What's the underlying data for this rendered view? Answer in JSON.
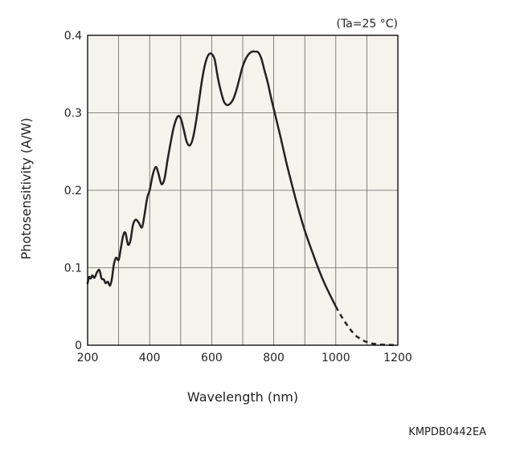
{
  "chart_data": {
    "type": "line",
    "title": "",
    "condition_note": "(Ta=25 °C)",
    "xlabel": "Wavelength (nm)",
    "ylabel": "Photosensitivity (A/W)",
    "xlim": [
      200,
      1200
    ],
    "ylim": [
      0,
      0.4
    ],
    "x_ticks": [
      "200",
      "400",
      "600",
      "800",
      "1000",
      "1200"
    ],
    "y_ticks": [
      "0",
      "0.1",
      "0.2",
      "0.3",
      "0.4"
    ],
    "grid": true,
    "background_color": "#f4f4ec",
    "line_color": "#222222",
    "series": [
      {
        "style": "solid",
        "x": [
          200,
          205,
          210,
          215,
          222,
          230,
          238,
          245,
          252,
          258,
          265,
          272,
          278,
          285,
          292,
          300,
          307,
          315,
          322,
          330,
          338,
          346,
          355,
          365,
          375,
          383,
          392,
          400,
          410,
          420,
          428,
          438,
          448,
          458,
          468,
          478,
          490,
          500,
          510,
          520,
          530,
          540,
          550,
          560,
          570,
          580,
          590,
          600,
          610,
          620,
          630,
          640,
          650,
          660,
          670,
          680,
          690,
          700,
          710,
          720,
          730,
          740,
          750,
          760,
          770,
          780,
          790,
          800,
          820,
          840,
          860,
          880,
          900,
          920,
          940,
          960,
          980,
          1000
        ],
        "y": [
          0.08,
          0.088,
          0.086,
          0.09,
          0.087,
          0.094,
          0.097,
          0.086,
          0.085,
          0.08,
          0.082,
          0.077,
          0.085,
          0.105,
          0.113,
          0.11,
          0.125,
          0.142,
          0.145,
          0.13,
          0.135,
          0.155,
          0.162,
          0.158,
          0.152,
          0.167,
          0.19,
          0.2,
          0.22,
          0.23,
          0.222,
          0.208,
          0.215,
          0.24,
          0.262,
          0.282,
          0.295,
          0.293,
          0.278,
          0.262,
          0.258,
          0.268,
          0.29,
          0.318,
          0.345,
          0.365,
          0.375,
          0.376,
          0.368,
          0.345,
          0.327,
          0.314,
          0.31,
          0.312,
          0.318,
          0.33,
          0.345,
          0.36,
          0.37,
          0.376,
          0.379,
          0.379,
          0.378,
          0.37,
          0.355,
          0.34,
          0.322,
          0.305,
          0.272,
          0.237,
          0.205,
          0.175,
          0.148,
          0.125,
          0.103,
          0.083,
          0.066,
          0.05
        ]
      },
      {
        "style": "dashed",
        "x": [
          1000,
          1020,
          1040,
          1060,
          1080,
          1100,
          1120,
          1140,
          1160,
          1180,
          1200
        ],
        "y": [
          0.05,
          0.036,
          0.024,
          0.014,
          0.008,
          0.004,
          0.002,
          0.001,
          0.0005,
          0.0002,
          0
        ]
      }
    ]
  },
  "figure_code": "KMPDB0442EA"
}
